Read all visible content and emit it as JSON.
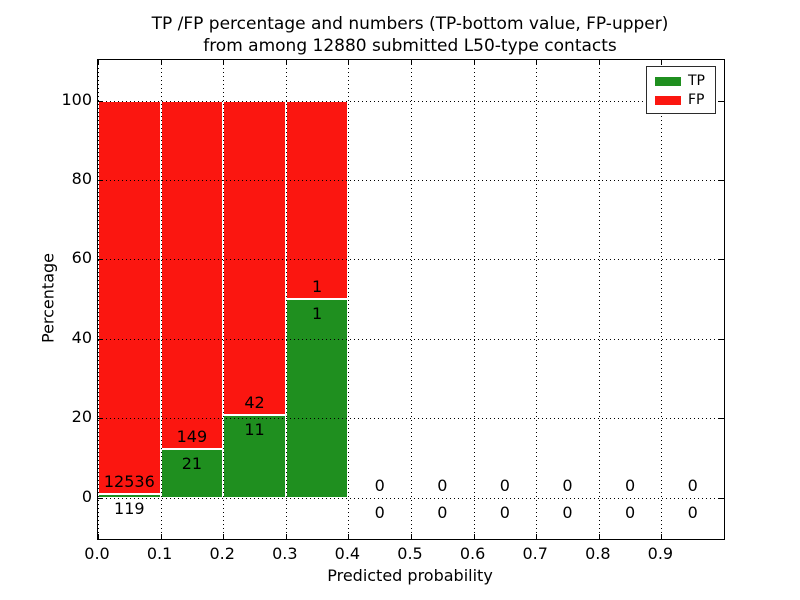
{
  "figure": {
    "title_line1": "TP /FP percentage and numbers (TP-bottom value, FP-upper)",
    "title_line2": "from among 12880 submitted L50-type contacts"
  },
  "chart_data": {
    "type": "bar",
    "stacked": true,
    "title": "TP /FP percentage and numbers (TP-bottom value, FP-upper)\nfrom among 12880 submitted L50-type contacts",
    "xlabel": "Predicted probability",
    "ylabel": "Percentage",
    "xlim": [
      0.0,
      1.0
    ],
    "ylim": [
      -10.4,
      110.2
    ],
    "bin_edges": [
      0.0,
      0.1,
      0.2,
      0.3,
      0.4,
      0.5,
      0.6,
      0.7,
      0.8,
      0.9,
      1.0
    ],
    "xtick_values": [
      0.0,
      0.1,
      0.2,
      0.3,
      0.4,
      0.5,
      0.6,
      0.7,
      0.8,
      0.9
    ],
    "xtick_labels": [
      "0.0",
      "0.1",
      "0.2",
      "0.3",
      "0.4",
      "0.5",
      "0.6",
      "0.7",
      "0.8",
      "0.9"
    ],
    "ytick_values": [
      0,
      20,
      40,
      60,
      80,
      100
    ],
    "ytick_labels": [
      "0",
      "20",
      "40",
      "60",
      "80",
      "100"
    ],
    "grid": {
      "on": true,
      "style": "dotted",
      "color": "#000000"
    },
    "series": [
      {
        "name": "TP",
        "counts": [
          119,
          21,
          11,
          1,
          0,
          0,
          0,
          0,
          0,
          0
        ],
        "values_pct": [
          0.94,
          12.35,
          20.75,
          50.0,
          0,
          0,
          0,
          0,
          0,
          0
        ]
      },
      {
        "name": "FP",
        "counts": [
          12536,
          149,
          42,
          1,
          0,
          0,
          0,
          0,
          0,
          0
        ],
        "values_pct": [
          99.06,
          87.65,
          79.25,
          50.0,
          0,
          0,
          0,
          0,
          0,
          0
        ]
      }
    ],
    "legend": {
      "position": "upper-right",
      "entries": [
        {
          "label": "TP",
          "color": "#1f8f1f"
        },
        {
          "label": "FP",
          "color": "#fb1610"
        }
      ]
    },
    "colors": {
      "tp": "#1f8f1f",
      "fp": "#fb1610",
      "bar_edge": "#ffffff",
      "axes": "#000000",
      "background": "#ffffff"
    }
  }
}
